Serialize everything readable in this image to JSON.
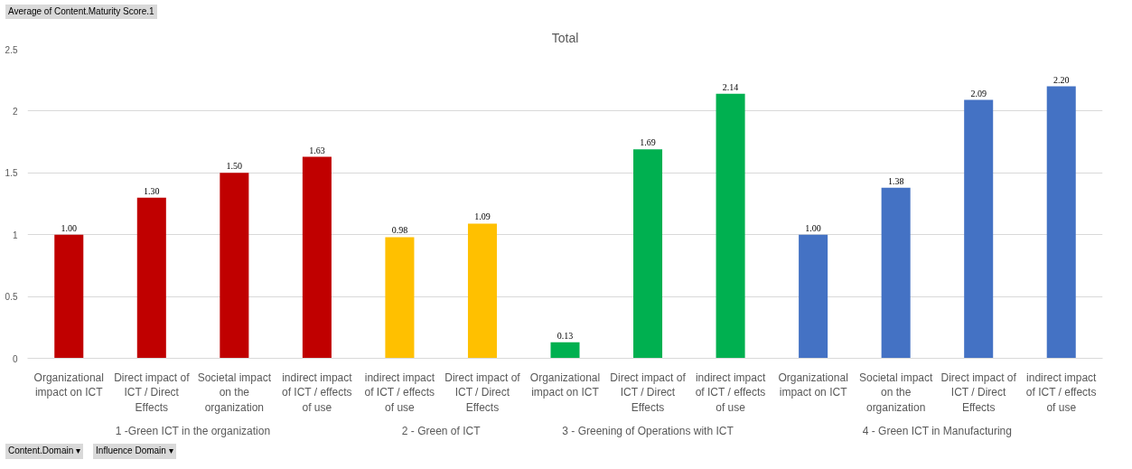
{
  "chart_data": {
    "type": "bar",
    "title": "Total",
    "categories": [
      "Organizational impact on ICT",
      "Direct impact of ICT / Direct Effects",
      "Societal impact on the organization",
      "indirect impact of ICT / effects of use",
      "indirect impact of ICT / effects of use",
      "Direct impact of ICT / Direct Effects",
      "Organizational impact on ICT",
      "Direct impact of ICT / Direct Effects",
      "indirect impact of ICT / effects of use",
      "Organizational impact on ICT",
      "Societal impact on the organization",
      "Direct impact of ICT / Direct Effects",
      "indirect impact of ICT / effects of use"
    ],
    "values": [
      1.0,
      1.3,
      1.5,
      1.63,
      0.98,
      1.09,
      0.13,
      1.69,
      2.14,
      1.0,
      1.38,
      2.09,
      2.2
    ],
    "value_labels": [
      "1.00",
      "1.30",
      "1.50",
      "1.63",
      "0.98",
      "1.09",
      "0.13",
      "1.69",
      "2.14",
      "1.00",
      "1.38",
      "2.09",
      "2.20"
    ],
    "colors": [
      "#c00000",
      "#c00000",
      "#c00000",
      "#c00000",
      "#ffc000",
      "#ffc000",
      "#00b050",
      "#00b050",
      "#00b050",
      "#4472c4",
      "#4472c4",
      "#4472c4",
      "#4472c4"
    ],
    "ylim": [
      0,
      2.5
    ],
    "yticks": [
      0,
      0.5,
      1,
      1.5,
      2,
      2.5
    ],
    "grid": "y",
    "annotations": [
      "Average of Content.Maturity Score.1",
      "1 -Green ICT in the organization",
      "2 - Green of ICT",
      "3 - Greening of Operations with ICT",
      "4 - Green ICT in Manufacturing",
      "Content.Domain ▾",
      "Influence Domain ▾"
    ]
  }
}
